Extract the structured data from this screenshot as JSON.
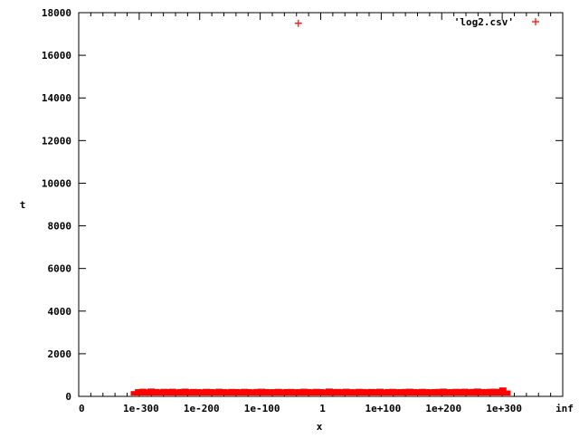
{
  "chart_data": {
    "type": "scatter",
    "title": "",
    "xlabel": "x",
    "ylabel": "t",
    "x_scale": "log10 (ticks evenly spaced per 100 decades)",
    "x_tick_labels": [
      "0",
      "1e-300",
      "1e-200",
      "1e-100",
      "1",
      "1e+100",
      "1e+200",
      "1e+300",
      "inf"
    ],
    "ylim": [
      0,
      18000
    ],
    "y_ticks": [
      0,
      2000,
      4000,
      6000,
      8000,
      10000,
      12000,
      14000,
      16000,
      18000
    ],
    "grid": false,
    "legend_position": "top-right",
    "series": [
      {
        "name": "'log2.csv'",
        "color": "#ff0000",
        "marker": "plus",
        "points_x_log10": [
          -308,
          -301,
          -294,
          -287,
          -280,
          -273,
          -266,
          -259,
          -252,
          -245,
          -238,
          -231,
          -224,
          -217,
          -210,
          -203,
          -196,
          -189,
          -182,
          -175,
          -168,
          -161,
          -154,
          -147,
          -140,
          -133,
          -126,
          -119,
          -112,
          -105,
          -98,
          -91,
          -84,
          -77,
          -70,
          -63,
          -56,
          -49,
          -42,
          -37,
          -35,
          -28,
          -21,
          -14,
          -7,
          0,
          7,
          14,
          21,
          28,
          35,
          42,
          49,
          56,
          63,
          70,
          77,
          84,
          91,
          98,
          105,
          112,
          119,
          126,
          133,
          140,
          147,
          154,
          161,
          168,
          175,
          182,
          189,
          196,
          203,
          210,
          217,
          224,
          231,
          238,
          245,
          252,
          259,
          266,
          273,
          280,
          287,
          294,
          301,
          308
        ],
        "points_t": [
          120,
          210,
          230,
          205,
          240,
          215,
          200,
          225,
          210,
          230,
          200,
          215,
          235,
          205,
          220,
          210,
          200,
          225,
          215,
          205,
          230,
          210,
          200,
          220,
          215,
          205,
          225,
          210,
          200,
          220,
          230,
          215,
          205,
          210,
          225,
          200,
          215,
          220,
          205,
          17500,
          210,
          230,
          215,
          205,
          225,
          210,
          200,
          240,
          215,
          220,
          205,
          230,
          210,
          200,
          225,
          215,
          205,
          220,
          210,
          230,
          200,
          215,
          225,
          205,
          210,
          220,
          230,
          215,
          205,
          225,
          210,
          200,
          215,
          220,
          235,
          205,
          210,
          225,
          215,
          230,
          205,
          220,
          240,
          215,
          210,
          225,
          230,
          215,
          290,
          150
        ]
      }
    ]
  }
}
